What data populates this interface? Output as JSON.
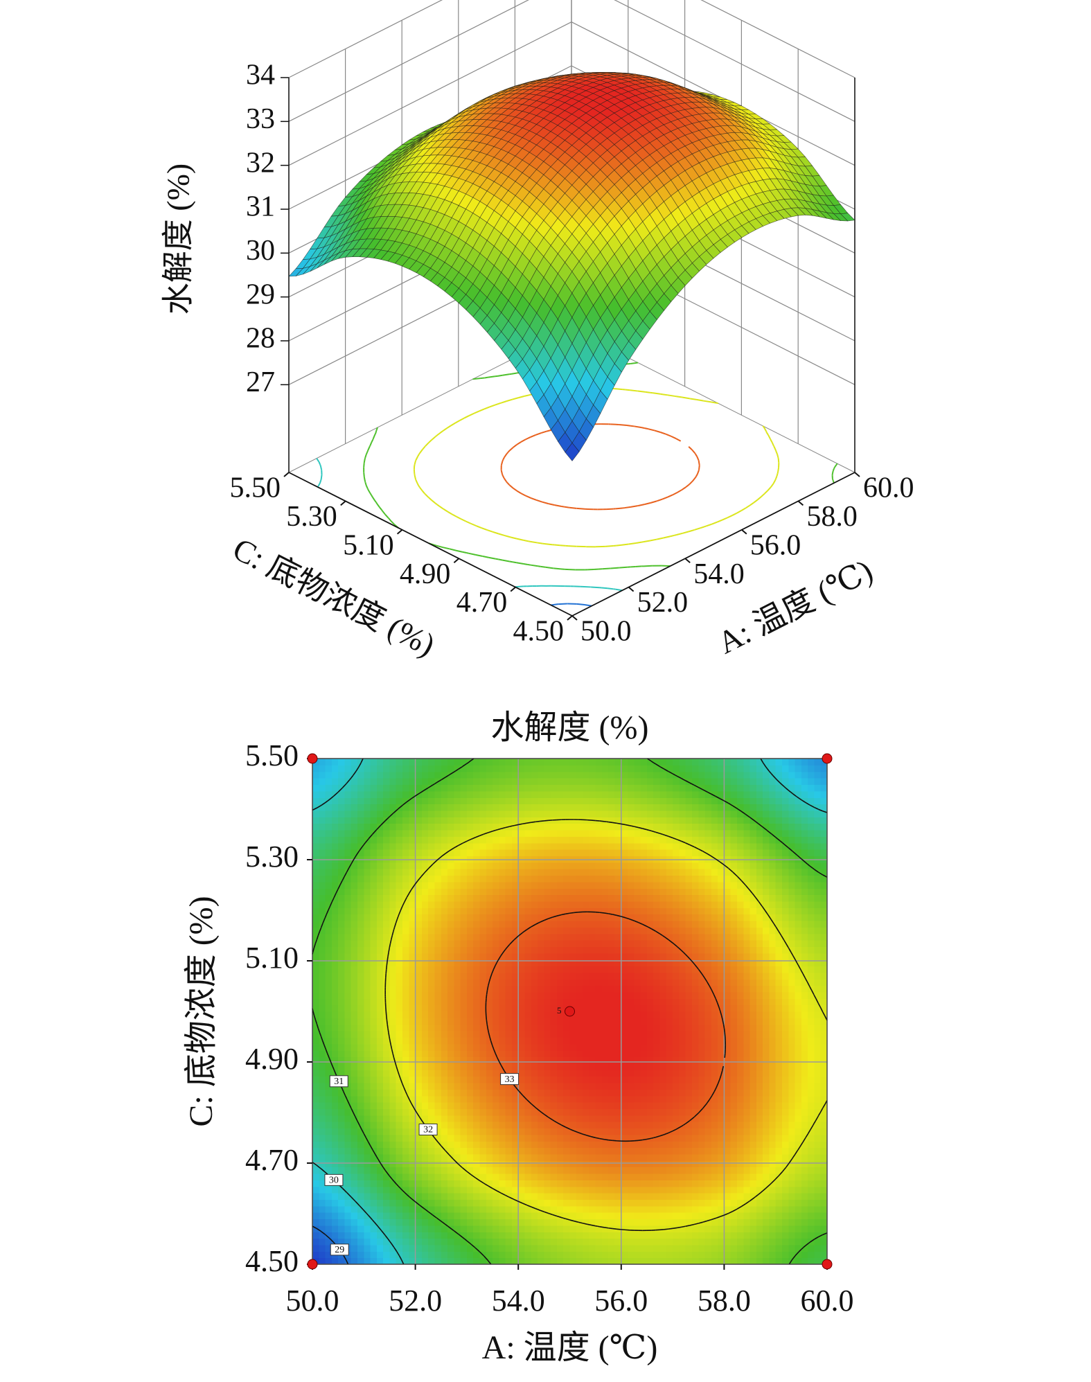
{
  "chart_data": [
    {
      "type": "surface3d",
      "zlabel": "水解度 (%)",
      "xlabel": "A: 温度 (℃)",
      "ylabel": "C: 底物浓度 (%)",
      "x": [
        50,
        52,
        54,
        56,
        58,
        60
      ],
      "y": [
        4.5,
        4.7,
        4.9,
        5.1,
        5.3,
        5.5
      ],
      "z": [
        [
          28.53,
          30.17,
          31.22,
          31.66,
          31.51,
          30.75
        ],
        [
          29.99,
          31.54,
          32.49,
          32.83,
          32.58,
          31.72
        ],
        [
          30.82,
          32.27,
          33.11,
          33.36,
          33.0,
          32.05
        ],
        [
          31.01,
          32.36,
          33.1,
          33.25,
          32.79,
          31.74
        ],
        [
          30.56,
          31.81,
          32.45,
          32.5,
          31.94,
          30.79
        ],
        [
          29.47,
          30.62,
          31.16,
          31.11,
          30.45,
          29.2
        ]
      ],
      "xlim": [
        50,
        60
      ],
      "ylim": [
        4.5,
        5.5
      ],
      "zlim": [
        25,
        34
      ],
      "xticks": [
        {
          "value": 50,
          "label": "50.0"
        },
        {
          "value": 52,
          "label": "52.0"
        },
        {
          "value": 54,
          "label": "54.0"
        },
        {
          "value": 56,
          "label": "56.0"
        },
        {
          "value": 58,
          "label": "58.0"
        },
        {
          "value": 60,
          "label": "60.0"
        }
      ],
      "yticks": [
        {
          "value": 4.5,
          "label": "4.50"
        },
        {
          "value": 4.7,
          "label": "4.70"
        },
        {
          "value": 4.9,
          "label": "4.90"
        },
        {
          "value": 5.1,
          "label": "5.10"
        },
        {
          "value": 5.3,
          "label": "5.30"
        },
        {
          "value": 5.5,
          "label": "5.50"
        }
      ],
      "zticks": [
        27,
        28,
        29,
        30,
        31,
        32,
        33,
        34
      ],
      "levels": [
        29,
        30,
        31,
        32,
        33
      ]
    },
    {
      "type": "contour",
      "title": "水解度 (%)",
      "xlabel": "A: 温度 (℃)",
      "ylabel": "C: 底物浓度 (%)",
      "x": [
        50,
        52,
        54,
        56,
        58,
        60
      ],
      "y": [
        4.5,
        4.7,
        4.9,
        5.1,
        5.3,
        5.5
      ],
      "z": [
        [
          28.53,
          30.17,
          31.22,
          31.66,
          31.51,
          30.75
        ],
        [
          29.99,
          31.54,
          32.49,
          32.83,
          32.58,
          31.72
        ],
        [
          30.82,
          32.27,
          33.11,
          33.36,
          33.0,
          32.05
        ],
        [
          31.01,
          32.36,
          33.1,
          33.25,
          32.79,
          31.74
        ],
        [
          30.56,
          31.81,
          32.45,
          32.5,
          31.94,
          30.79
        ],
        [
          29.47,
          30.62,
          31.16,
          31.11,
          30.45,
          29.2
        ]
      ],
      "xlim": [
        50,
        60
      ],
      "ylim": [
        4.5,
        5.5
      ],
      "xticks": [
        {
          "value": 50,
          "label": "50.0"
        },
        {
          "value": 52,
          "label": "52.0"
        },
        {
          "value": 54,
          "label": "54.0"
        },
        {
          "value": 56,
          "label": "56.0"
        },
        {
          "value": 58,
          "label": "58.0"
        },
        {
          "value": 60,
          "label": "60.0"
        }
      ],
      "yticks": [
        {
          "value": 4.5,
          "label": "4.50"
        },
        {
          "value": 4.7,
          "label": "4.70"
        },
        {
          "value": 4.9,
          "label": "4.90"
        },
        {
          "value": 5.1,
          "label": "5.10"
        },
        {
          "value": 5.3,
          "label": "5.30"
        },
        {
          "value": 5.5,
          "label": "5.50"
        }
      ],
      "grid": true,
      "levels": [
        29,
        30,
        31,
        32,
        33
      ],
      "design_points": {
        "x": [
          50,
          50,
          60,
          60,
          55
        ],
        "y": [
          4.5,
          5.5,
          4.5,
          5.5,
          5.0
        ]
      },
      "center_runs": 5
    }
  ]
}
